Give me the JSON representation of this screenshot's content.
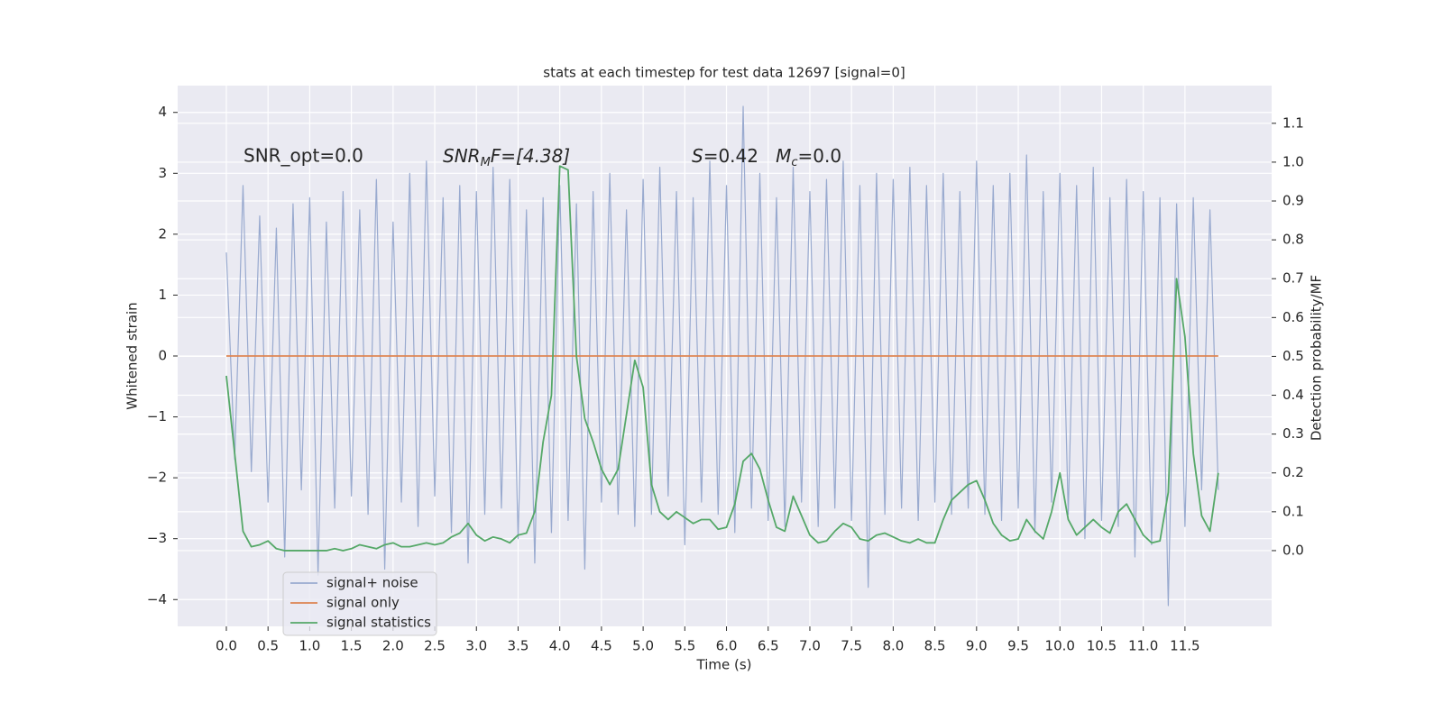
{
  "chart_data": {
    "type": "line",
    "title": "stats at each timestep for test data 12697 [signal=0]",
    "xlabel": "Time (s)",
    "ylabel": "Whitened strain",
    "y2label": "Detection probability/MF",
    "annotations": [
      [
        "SNR_opt=0.0"
      ],
      [
        "SNR",
        "M",
        "F=[4.38]"
      ],
      [
        "S",
        "=0.42   ",
        "M",
        "c",
        "=0.0"
      ]
    ],
    "xlim": [
      -0.584,
      12.54
    ],
    "ylim": [
      -4.44,
      4.44
    ],
    "y2lim": [
      -0.195,
      1.197
    ],
    "xticks": [
      {
        "value": 0,
        "label": "0.0"
      },
      0.5,
      {
        "value": 1,
        "label": "1.0"
      },
      1.5,
      {
        "value": 2,
        "label": "2.0"
      },
      2.5,
      {
        "value": 3,
        "label": "3.0"
      },
      3.5,
      {
        "value": 4,
        "label": "4.0"
      },
      4.5,
      {
        "value": 5,
        "label": "5.0"
      },
      5.5,
      {
        "value": 6,
        "label": "6.0"
      },
      6.5,
      {
        "value": 7,
        "label": "7.0"
      },
      7.5,
      {
        "value": 8,
        "label": "8.0"
      },
      8.5,
      {
        "value": 9,
        "label": "9.0"
      },
      9.5,
      {
        "value": 10,
        "label": "10.0"
      },
      10.5,
      {
        "value": 11,
        "label": "11.0"
      },
      11.5
    ],
    "yticks": [
      {
        "value": -4,
        "label": "−4"
      },
      {
        "value": -3,
        "label": "−3"
      },
      {
        "value": -2,
        "label": "−2"
      },
      {
        "value": -1,
        "label": "−1"
      },
      0,
      1,
      2,
      3,
      4
    ],
    "y2ticks": [
      {
        "value": 0,
        "label": "0.0"
      },
      0.1,
      0.2,
      0.3,
      0.4,
      0.5,
      0.6,
      0.7,
      0.8,
      0.9,
      {
        "value": 1,
        "label": "1.0"
      },
      1.1
    ],
    "grid": true,
    "legend": "lower left",
    "x": [
      0,
      0.1,
      0.2,
      0.3,
      0.4,
      0.5,
      0.6,
      0.7,
      0.8,
      0.9,
      1,
      1.1,
      1.2,
      1.3,
      1.4,
      1.5,
      1.6,
      1.7,
      1.8,
      1.9,
      2,
      2.1,
      2.2,
      2.3,
      2.4,
      2.5,
      2.6,
      2.7,
      2.8,
      2.9,
      3,
      3.1,
      3.2,
      3.3,
      3.4,
      3.5,
      3.6,
      3.7,
      3.8,
      3.9,
      4,
      4.1,
      4.2,
      4.3,
      4.4,
      4.5,
      4.6,
      4.7,
      4.8,
      4.9,
      5,
      5.1,
      5.2,
      5.3,
      5.4,
      5.5,
      5.6,
      5.7,
      5.8,
      5.9,
      6,
      6.1,
      6.2,
      6.3,
      6.4,
      6.5,
      6.6,
      6.7,
      6.8,
      6.9,
      7,
      7.1,
      7.2,
      7.3,
      7.4,
      7.5,
      7.6,
      7.7,
      7.8,
      7.9,
      8,
      8.1,
      8.2,
      8.3,
      8.4,
      8.5,
      8.6,
      8.7,
      8.8,
      8.9,
      9,
      9.1,
      9.2,
      9.3,
      9.4,
      9.5,
      9.6,
      9.7,
      9.8,
      9.9,
      10,
      10.1,
      10.2,
      10.3,
      10.4,
      10.5,
      10.6,
      10.7,
      10.8,
      10.9,
      11,
      11.1,
      11.2,
      11.3,
      11.4,
      11.5,
      11.6,
      11.7,
      11.8,
      11.9
    ],
    "series": [
      {
        "name": "signal+ noise",
        "color": "#99aacf",
        "values": [
          1.7,
          -1.7,
          2.8,
          -1.9,
          2.3,
          -2.4,
          2.1,
          -3.3,
          2.5,
          -2.2,
          2.6,
          -3.6,
          2.2,
          -2.5,
          2.7,
          -2.3,
          2.4,
          -2.6,
          2.9,
          -3.5,
          2.2,
          -2.4,
          3.0,
          -2.8,
          3.2,
          -2.3,
          2.6,
          -2.9,
          2.8,
          -3.4,
          2.7,
          -2.6,
          3.1,
          -2.5,
          2.9,
          -3.0,
          2.4,
          -3.4,
          2.6,
          -2.9,
          2.8,
          -2.7,
          2.5,
          -3.5,
          2.7,
          -2.4,
          3.0,
          -2.6,
          2.4,
          -2.8,
          2.9,
          -2.6,
          3.1,
          -2.3,
          2.7,
          -3.1,
          2.6,
          -2.4,
          3.2,
          -2.6,
          2.8,
          -2.9,
          4.1,
          -2.5,
          3.0,
          -2.7,
          2.6,
          -2.8,
          3.1,
          -2.4,
          2.7,
          -2.8,
          2.9,
          -2.5,
          3.2,
          -2.7,
          2.8,
          -3.8,
          3.0,
          -2.6,
          2.9,
          -2.5,
          3.1,
          -2.7,
          2.8,
          -2.4,
          3.0,
          -2.6,
          2.7,
          -2.5,
          3.2,
          -2.6,
          2.8,
          -2.7,
          3.0,
          -2.5,
          3.3,
          -2.9,
          2.7,
          -2.4,
          3.0,
          -2.6,
          2.8,
          -3.0,
          3.1,
          -2.7,
          2.6,
          -2.8,
          2.9,
          -3.3,
          2.7,
          -3.1,
          2.6,
          -4.1,
          2.5,
          -2.8,
          2.6,
          -2.2,
          2.4,
          -2.2
        ]
      },
      {
        "name": "signal only",
        "color": "#dd8452",
        "values": [
          0,
          0,
          0,
          0,
          0,
          0,
          0,
          0,
          0,
          0,
          0,
          0,
          0,
          0,
          0,
          0,
          0,
          0,
          0,
          0,
          0,
          0,
          0,
          0,
          0,
          0,
          0,
          0,
          0,
          0,
          0,
          0,
          0,
          0,
          0,
          0,
          0,
          0,
          0,
          0,
          0,
          0,
          0,
          0,
          0,
          0,
          0,
          0,
          0,
          0,
          0,
          0,
          0,
          0,
          0,
          0,
          0,
          0,
          0,
          0,
          0,
          0,
          0,
          0,
          0,
          0,
          0,
          0,
          0,
          0,
          0,
          0,
          0,
          0,
          0,
          0,
          0,
          0,
          0,
          0,
          0,
          0,
          0,
          0,
          0,
          0,
          0,
          0,
          0,
          0,
          0,
          0,
          0,
          0,
          0,
          0,
          0,
          0,
          0,
          0,
          0,
          0,
          0,
          0,
          0,
          0,
          0,
          0,
          0,
          0,
          0,
          0,
          0,
          0,
          0,
          0,
          0,
          0,
          0,
          0
        ]
      },
      {
        "name": "signal statistics",
        "color": "#55a868",
        "axis": "y2",
        "values": [
          0.45,
          0.25,
          0.05,
          0.01,
          0.015,
          0.025,
          0.005,
          0,
          0,
          0,
          0,
          0,
          0,
          0.005,
          0,
          0.005,
          0.015,
          0.01,
          0.005,
          0.015,
          0.02,
          0.01,
          0.01,
          0.015,
          0.02,
          0.015,
          0.02,
          0.035,
          0.045,
          0.07,
          0.04,
          0.025,
          0.035,
          0.03,
          0.02,
          0.04,
          0.045,
          0.1,
          0.28,
          0.4,
          0.99,
          0.98,
          0.5,
          0.34,
          0.28,
          0.21,
          0.17,
          0.21,
          0.35,
          0.49,
          0.42,
          0.17,
          0.1,
          0.08,
          0.1,
          0.085,
          0.07,
          0.08,
          0.08,
          0.055,
          0.06,
          0.12,
          0.23,
          0.25,
          0.21,
          0.13,
          0.06,
          0.05,
          0.14,
          0.09,
          0.04,
          0.02,
          0.025,
          0.05,
          0.07,
          0.06,
          0.03,
          0.025,
          0.04,
          0.045,
          0.035,
          0.025,
          0.02,
          0.03,
          0.02,
          0.02,
          0.08,
          0.13,
          0.15,
          0.17,
          0.18,
          0.13,
          0.07,
          0.04,
          0.025,
          0.03,
          0.08,
          0.05,
          0.03,
          0.1,
          0.2,
          0.08,
          0.04,
          0.06,
          0.08,
          0.06,
          0.045,
          0.1,
          0.12,
          0.08,
          0.04,
          0.02,
          0.025,
          0.15,
          0.7,
          0.55,
          0.25,
          0.09,
          0.05,
          0.2
        ]
      }
    ]
  }
}
